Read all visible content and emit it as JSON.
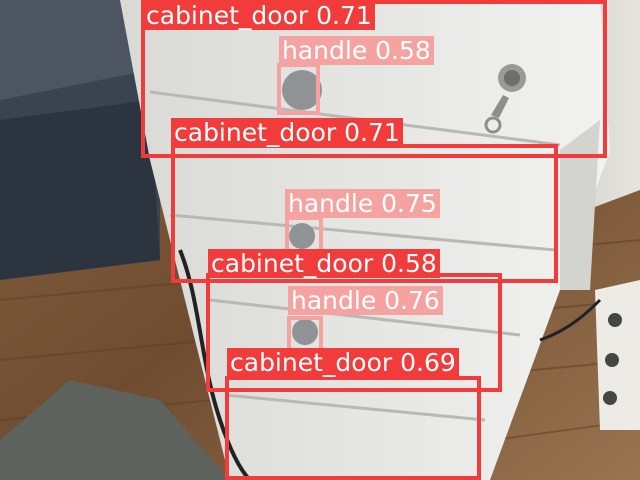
{
  "detections": [
    {
      "label": "cabinet_door",
      "score": "0.71",
      "text": "cabinet_door 0.71"
    },
    {
      "label": "handle",
      "score": "0.58",
      "text": "handle 0.58"
    },
    {
      "label": "cabinet_door",
      "score": "0.71",
      "text": "cabinet_door 0.71"
    },
    {
      "label": "handle",
      "score": "0.75",
      "text": "handle 0.75"
    },
    {
      "label": "cabinet_door",
      "score": "0.58",
      "text": "cabinet_door 0.58"
    },
    {
      "label": "handle",
      "score": "0.76",
      "text": "handle 0.76"
    },
    {
      "label": "cabinet_door",
      "score": "0.69",
      "text": "cabinet_door 0.69"
    }
  ],
  "colors": {
    "cabinet_door": "#f23b3b",
    "handle": "#f5a3a0"
  }
}
